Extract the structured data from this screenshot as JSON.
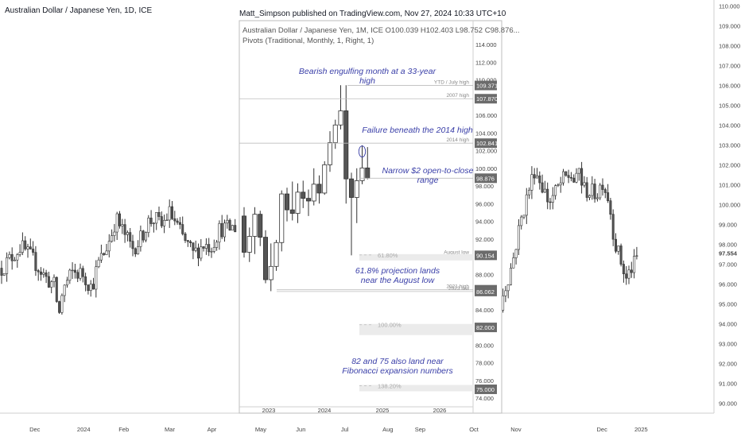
{
  "header": {
    "symbol_title": "Australian Dollar / Japanese Yen, 1D, ICE",
    "publisher": "Matt_Simpson published on TradingView.com, Nov 27, 2024 10:33 UTC+10"
  },
  "inset_header": {
    "line1": "Australian Dollar / Japanese Yen, 1M, ICE  O100.039  H102.403  L98.752  C98.876...",
    "line2": "Pivots (Traditional, Monthly, 1, Right, 1)"
  },
  "annotations": {
    "bearish": "Bearish engulfing month at a 33-year high",
    "failure": "Failure beneath the 2014 high",
    "narrow": "Narrow $2 open-to-close range",
    "projection_1": "61.8% projection lands",
    "projection_2": "near the August low",
    "fib_note_1": "82 and 75 also land near",
    "fib_note_2": "Fibonacci expansion numbers"
  },
  "colors": {
    "up": "#ffffff",
    "down": "#555555",
    "wick": "#333333",
    "badge": "#6b6b6b",
    "annotation": "#3a3fa8",
    "last_price": "#9e9e9e"
  },
  "chart_data": [
    {
      "type": "candlestick",
      "name": "daily",
      "x_ticks": [
        "Dec",
        "2024",
        "Feb",
        "Mar",
        "Apr",
        "May",
        "Jun",
        "Jul",
        "Aug",
        "Sep",
        "Oct",
        "Nov",
        "Dec",
        "2025"
      ],
      "y_ticks": [
        90.0,
        91.0,
        92.0,
        93.0,
        94.0,
        95.0,
        96.0,
        97.0,
        98.0,
        99.0,
        100.0,
        101.0,
        102.0,
        103.0,
        104.0,
        105.0,
        106.0,
        107.0,
        108.0,
        109.0,
        110.0
      ],
      "ylim": [
        89.5,
        110.3
      ],
      "last_price": "97.554",
      "path": [
        [
          0,
          96.8
        ],
        [
          1,
          97.5
        ],
        [
          1.5,
          97.9
        ],
        [
          2.5,
          97.2
        ],
        [
          3.5,
          96.3
        ],
        [
          4.2,
          95.9
        ],
        [
          4.5,
          94.3
        ],
        [
          4.8,
          95.7
        ],
        [
          5.6,
          96.6
        ],
        [
          6.4,
          96.5
        ],
        [
          7.1,
          95.8
        ],
        [
          7.6,
          97.0
        ],
        [
          8.1,
          97.6
        ],
        [
          8.6,
          98.4
        ],
        [
          9.0,
          99.3
        ],
        [
          9.6,
          98.6
        ],
        [
          10.3,
          97.8
        ],
        [
          10.9,
          98.2
        ],
        [
          11.5,
          99.1
        ],
        [
          12.1,
          99.3
        ],
        [
          12.6,
          98.9
        ],
        [
          13.2,
          99.6
        ],
        [
          13.6,
          99.2
        ],
        [
          14.3,
          98.3
        ],
        [
          15.1,
          97.5
        ],
        [
          15.9,
          98.0
        ],
        [
          16.5,
          97.9
        ],
        [
          17.2,
          98.8
        ],
        [
          18.0,
          98.8
        ],
        [
          18.6,
          98.9
        ]
      ],
      "path2": [
        [
          19.1,
          96.5
        ],
        [
          19.3,
          94.5
        ],
        [
          19.5,
          95.3
        ],
        [
          20.5,
          97.0
        ],
        [
          21.3,
          99.1
        ],
        [
          22.0,
          100.5
        ],
        [
          22.7,
          101.8
        ],
        [
          23.4,
          101.0
        ],
        [
          24.1,
          100.1
        ],
        [
          24.7,
          100.6
        ],
        [
          25.4,
          101.2
        ],
        [
          26.2,
          101.5
        ],
        [
          26.7,
          101.0
        ],
        [
          27.0,
          101.8
        ],
        [
          27.4,
          100.8
        ],
        [
          28.2,
          100.6
        ],
        [
          28.8,
          100.6
        ],
        [
          29.3,
          101.2
        ],
        [
          29.9,
          100.3
        ],
        [
          30.5,
          98.1
        ],
        [
          31.0,
          97.3
        ],
        [
          31.6,
          96.2
        ],
        [
          32.0,
          96.7
        ],
        [
          32.4,
          97.0
        ],
        [
          32.8,
          97.5
        ]
      ]
    },
    {
      "type": "candlestick",
      "name": "monthly-inset",
      "x_ticks": [
        "2023",
        "2024",
        "2025",
        "2026"
      ],
      "y_ticks": [
        74.0,
        76.0,
        78.0,
        80.0,
        82.0,
        84.0,
        86.0,
        88.0,
        90.0,
        92.0,
        94.0,
        96.0,
        98.0,
        100.0,
        102.0,
        104.0,
        106.0,
        108.0,
        110.0,
        112.0,
        114.0
      ],
      "ylim": [
        72.3,
        116.7
      ],
      "candles": [
        [
          94.6,
          95.6,
          89.9,
          90.5
        ],
        [
          90.5,
          93.3,
          89.4,
          92.3
        ],
        [
          92.3,
          95.6,
          90.3,
          94.8
        ],
        [
          94.8,
          95.2,
          91.2,
          92.2
        ],
        [
          92.2,
          93.0,
          87.0,
          87.4
        ],
        [
          87.4,
          91.5,
          86.1,
          88.9
        ],
        [
          88.9,
          91.9,
          88.4,
          91.6
        ],
        [
          91.6,
          97.5,
          90.6,
          97.1
        ],
        [
          97.1,
          97.8,
          94.0,
          95.3
        ],
        [
          95.3,
          98.5,
          94.1,
          94.9
        ],
        [
          94.9,
          98.3,
          93.8,
          97.3
        ],
        [
          97.3,
          98.6,
          95.5,
          96.6
        ],
        [
          96.6,
          97.6,
          94.6,
          96.3
        ],
        [
          96.3,
          100.0,
          95.8,
          98.2
        ],
        [
          98.2,
          99.2,
          96.0,
          97.2
        ],
        [
          97.2,
          100.8,
          97.0,
          100.4
        ],
        [
          100.4,
          104.2,
          99.6,
          102.9
        ],
        [
          102.9,
          105.5,
          102.2,
          104.9
        ],
        [
          104.9,
          109.4,
          104.4,
          106.5
        ],
        [
          106.5,
          109.4,
          96.0,
          98.8
        ],
        [
          98.8,
          99.5,
          90.15,
          96.7
        ],
        [
          96.7,
          100.0,
          93.8,
          98.6
        ],
        [
          98.6,
          102.6,
          98.2,
          100.04
        ],
        [
          100.04,
          102.4,
          98.75,
          98.88
        ]
      ],
      "levels": [
        {
          "label": "YTD / July high",
          "value": 109.371,
          "text": "109.371"
        },
        {
          "label": "2007 high",
          "value": 107.87,
          "text": "107.870"
        },
        {
          "label": "2014 high",
          "value": 102.841,
          "text": "102.841"
        },
        {
          "label": "",
          "value": 98.876,
          "text": "98.876"
        },
        {
          "label": "August low",
          "value": 90.154,
          "text": "90.154"
        },
        {
          "label": "2021 high",
          "value": 86.261,
          "text": "86.261"
        },
        {
          "label": "2023 low",
          "value": 86.062,
          "text": "86.062"
        },
        {
          "label": "",
          "value": 82.0,
          "text": "82.000"
        },
        {
          "label": "",
          "value": 75.0,
          "text": "75.000"
        }
      ],
      "fib_levels": [
        {
          "label": "61.80%",
          "value": 90.2
        },
        {
          "label": "100.00%",
          "value": 82.3
        },
        {
          "label": "138.20%",
          "value": 75.4
        }
      ]
    }
  ]
}
